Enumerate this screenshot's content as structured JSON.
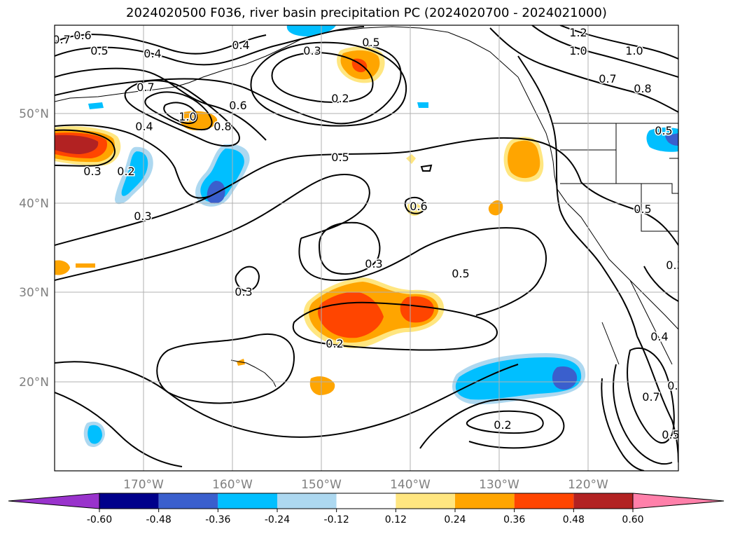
{
  "title": "2024020500 F036, river basin precipitation PC (2024020700 - 2024021000)",
  "axes": {
    "lat_labels": [
      "50°N",
      "40°N",
      "30°N",
      "20°N"
    ],
    "lon_labels": [
      "170°W",
      "160°W",
      "150°W",
      "140°W",
      "130°W",
      "120°W"
    ]
  },
  "colorbar": {
    "levels": [
      "-0.60",
      "-0.48",
      "-0.36",
      "-0.24",
      "-0.12",
      "0.12",
      "0.24",
      "0.36",
      "0.48",
      "0.60"
    ],
    "colors": [
      "#9933cc",
      "#00008b",
      "#3a5fcd",
      "#00bfff",
      "#add8f0",
      "#ffffff",
      "#ffe680",
      "#ffa500",
      "#ff4500",
      "#b22222",
      "#ff80aa"
    ]
  },
  "contour_labels": [
    "0.7",
    "0.6",
    "0.5",
    "0.4",
    "0.4",
    "0.3",
    "0.5",
    "1.2",
    "1.0",
    "1.0",
    "0.7",
    "0.8",
    "0.2",
    "0.7",
    "0.6",
    "1.0",
    "0.8",
    "0.4",
    "0.5",
    "0.3",
    "0.2",
    "0.6",
    "0.5",
    "0.3",
    "0.3",
    "0.5",
    "0.3",
    "0.2",
    "0.2",
    "0.3",
    "0.4",
    "0.7",
    "0.6",
    "0.5",
    "0.5"
  ]
}
